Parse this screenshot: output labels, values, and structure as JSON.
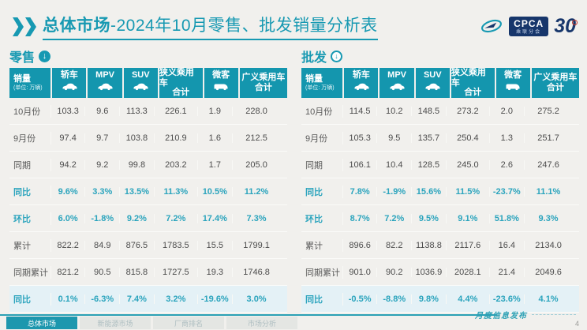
{
  "header": {
    "title_bold": "总体市场",
    "title_rest": "-2024年10月零售、批发销量分析表",
    "logo": {
      "cpca": "CPCA",
      "cpca_sub": "乘联分会",
      "anniversary": "30",
      "swoosh_icon": "cpca-swoosh-icon"
    }
  },
  "colors": {
    "accent": "#1799b2",
    "header_cell": "#1496ae",
    "percent_text": "#2ba4bd",
    "highlight_row": "#e4f1f6",
    "navy": "#17366b",
    "red_accent": "#c4392f"
  },
  "unit_note": "(单位: 万辆)",
  "columns": [
    {
      "label": "销量",
      "sub": "(单位: 万辆)",
      "icon": null
    },
    {
      "label": "轿车",
      "icon": "sedan-icon"
    },
    {
      "label": "MPV",
      "icon": "mpv-icon"
    },
    {
      "label": "SUV",
      "icon": "suv-icon"
    },
    {
      "label": "狭义乘用车",
      "label2": "合计",
      "icon": null
    },
    {
      "label": "微客",
      "icon": "van-icon"
    },
    {
      "label": "广义乘用车",
      "label2": "合计",
      "icon": null
    }
  ],
  "tables": [
    {
      "section_label": "零售",
      "arrow_icon": "down-arrow-filled-icon",
      "arrow_style": "filled",
      "rows": [
        {
          "label": "10月份",
          "style": "normal",
          "values": [
            "103.3",
            "9.6",
            "113.3",
            "226.1",
            "1.9",
            "228.0"
          ]
        },
        {
          "label": "9月份",
          "style": "normal",
          "values": [
            "97.4",
            "9.7",
            "103.8",
            "210.9",
            "1.6",
            "212.5"
          ]
        },
        {
          "label": "同期",
          "style": "normal",
          "values": [
            "94.2",
            "9.2",
            "99.8",
            "203.2",
            "1.7",
            "205.0"
          ]
        },
        {
          "label": "同比",
          "style": "percent",
          "values": [
            "9.6%",
            "3.3%",
            "13.5%",
            "11.3%",
            "10.5%",
            "11.2%"
          ]
        },
        {
          "label": "环比",
          "style": "percent",
          "values": [
            "6.0%",
            "-1.8%",
            "9.2%",
            "7.2%",
            "17.4%",
            "7.3%"
          ]
        },
        {
          "label": "累计",
          "style": "normal",
          "values": [
            "822.2",
            "84.9",
            "876.5",
            "1783.5",
            "15.5",
            "1799.1"
          ]
        },
        {
          "label": "同期累计",
          "style": "normal",
          "values": [
            "821.2",
            "90.5",
            "815.8",
            "1727.5",
            "19.3",
            "1746.8"
          ]
        },
        {
          "label": "同比",
          "style": "percent-highlight",
          "values": [
            "0.1%",
            "-6.3%",
            "7.4%",
            "3.2%",
            "-19.6%",
            "3.0%"
          ]
        }
      ]
    },
    {
      "section_label": "批发",
      "arrow_icon": "down-arrow-outline-icon",
      "arrow_style": "outline",
      "rows": [
        {
          "label": "10月份",
          "style": "normal",
          "values": [
            "114.5",
            "10.2",
            "148.5",
            "273.2",
            "2.0",
            "275.2"
          ]
        },
        {
          "label": "9月份",
          "style": "normal",
          "values": [
            "105.3",
            "9.5",
            "135.7",
            "250.4",
            "1.3",
            "251.7"
          ]
        },
        {
          "label": "同期",
          "style": "normal",
          "values": [
            "106.1",
            "10.4",
            "128.5",
            "245.0",
            "2.6",
            "247.6"
          ]
        },
        {
          "label": "同比",
          "style": "percent",
          "values": [
            "7.8%",
            "-1.9%",
            "15.6%",
            "11.5%",
            "-23.7%",
            "11.1%"
          ]
        },
        {
          "label": "环比",
          "style": "percent",
          "values": [
            "8.7%",
            "7.2%",
            "9.5%",
            "9.1%",
            "51.8%",
            "9.3%"
          ]
        },
        {
          "label": "累计",
          "style": "normal",
          "values": [
            "896.6",
            "82.2",
            "1138.8",
            "2117.6",
            "16.4",
            "2134.0"
          ]
        },
        {
          "label": "同期累计",
          "style": "normal",
          "values": [
            "901.0",
            "90.2",
            "1036.9",
            "2028.1",
            "21.4",
            "2049.6"
          ]
        },
        {
          "label": "同比",
          "style": "percent-highlight",
          "values": [
            "-0.5%",
            "-8.8%",
            "9.8%",
            "4.4%",
            "-23.6%",
            "4.1%"
          ]
        }
      ]
    }
  ],
  "footer": {
    "tabs": [
      {
        "label": "总体市场",
        "active": true
      },
      {
        "label": "新能源市场",
        "active": false
      },
      {
        "label": "厂商排名",
        "active": false
      },
      {
        "label": "市场分析",
        "active": false
      }
    ],
    "note": "月度信息发布",
    "page_number": "4"
  }
}
